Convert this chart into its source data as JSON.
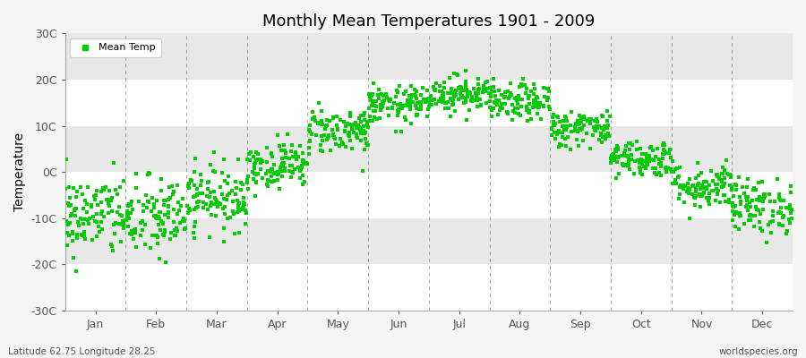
{
  "title": "Monthly Mean Temperatures 1901 - 2009",
  "ylabel": "Temperature",
  "ylim": [
    -30,
    30
  ],
  "yticks": [
    -30,
    -20,
    -10,
    0,
    10,
    20,
    30
  ],
  "ytick_labels": [
    "-30C",
    "-20C",
    "-10C",
    "0C",
    "10C",
    "20C",
    "30C"
  ],
  "months": [
    "Jan",
    "Feb",
    "Mar",
    "Apr",
    "May",
    "Jun",
    "Jul",
    "Aug",
    "Sep",
    "Oct",
    "Nov",
    "Dec"
  ],
  "n_years": 109,
  "mean_temps": [
    -9.5,
    -10.0,
    -5.5,
    1.5,
    9.0,
    14.5,
    17.0,
    15.0,
    9.5,
    3.0,
    -3.0,
    -7.5
  ],
  "std_temps": [
    4.5,
    4.5,
    3.5,
    2.5,
    2.5,
    2.0,
    2.0,
    2.0,
    2.0,
    2.0,
    2.5,
    3.0
  ],
  "dot_color": "#00cc00",
  "dot_size": 5,
  "fig_bg_color": "#f5f5f5",
  "plot_bg_color": "#f5f5f5",
  "legend_label": "Mean Temp",
  "bottom_left_text": "Latitude 62.75 Longitude 28.25",
  "bottom_right_text": "worldspecies.org",
  "grid_color": "#666666",
  "band_light": "#ffffff",
  "band_dark": "#e8e8e8",
  "seed": 42
}
